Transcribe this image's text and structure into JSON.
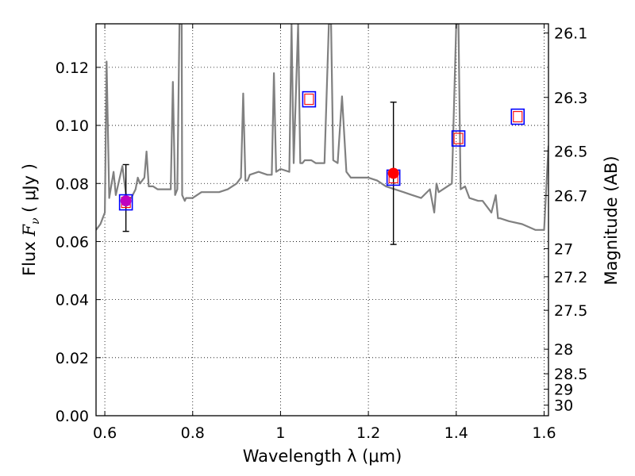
{
  "chart_data": {
    "type": "line",
    "xlabel": "Wavelength  λ (μm)",
    "ylabel": "Flux  F_ν  ( μJy )",
    "ylabel_parts": {
      "pre": "Flux  ",
      "sym": "F",
      "sub": "ν",
      "post": "  ( μJy )"
    },
    "y2label": "Magnitude (AB)",
    "xlim": [
      0.58,
      1.61
    ],
    "ylim": [
      0.0,
      0.135
    ],
    "grid": true,
    "x_ticks": [
      0.6,
      0.8,
      1.0,
      1.2,
      1.4,
      1.6
    ],
    "x_tick_labels": [
      "0.6",
      "0.8",
      "1",
      "1.2",
      "1.4",
      "1.6"
    ],
    "y_ticks": [
      0.0,
      0.02,
      0.04,
      0.06,
      0.08,
      0.1,
      0.12
    ],
    "y_tick_labels": [
      "0.00",
      "0.02",
      "0.04",
      "0.06",
      "0.08",
      "0.10",
      "0.12"
    ],
    "mag_ticks": [
      26.1,
      26.3,
      26.5,
      26.7,
      27,
      27.2,
      27.5,
      28,
      28.5,
      29,
      30
    ],
    "mag_tick_labels": [
      "26.1",
      "26.3",
      "26.5",
      "26.7",
      "27",
      "27.2",
      "27.5",
      "28",
      "28.5",
      "29",
      "30"
    ],
    "model_spectrum": {
      "name": "SED model",
      "color": "#808080",
      "x": [
        0.58,
        0.59,
        0.595,
        0.6,
        0.604,
        0.61,
        0.62,
        0.625,
        0.64,
        0.65,
        0.66,
        0.67,
        0.675,
        0.68,
        0.69,
        0.695,
        0.7,
        0.71,
        0.72,
        0.74,
        0.75,
        0.755,
        0.76,
        0.765,
        0.77,
        0.775,
        0.776,
        0.782,
        0.785,
        0.79,
        0.8,
        0.82,
        0.84,
        0.86,
        0.88,
        0.9,
        0.91,
        0.915,
        0.92,
        0.925,
        0.93,
        0.95,
        0.97,
        0.98,
        0.985,
        0.99,
        1.0,
        1.02,
        1.025,
        1.03,
        1.04,
        1.045,
        1.05,
        1.055,
        1.06,
        1.07,
        1.08,
        1.1,
        1.11,
        1.115,
        1.12,
        1.13,
        1.14,
        1.15,
        1.16,
        1.18,
        1.2,
        1.22,
        1.24,
        1.26,
        1.28,
        1.3,
        1.32,
        1.34,
        1.35,
        1.355,
        1.36,
        1.37,
        1.38,
        1.39,
        1.4,
        1.405,
        1.41,
        1.42,
        1.43,
        1.45,
        1.46,
        1.48,
        1.49,
        1.495,
        1.5,
        1.52,
        1.55,
        1.58,
        1.6,
        1.61
      ],
      "y": [
        0.064,
        0.066,
        0.068,
        0.07,
        0.122,
        0.075,
        0.084,
        0.076,
        0.086,
        0.074,
        0.075,
        0.078,
        0.082,
        0.08,
        0.082,
        0.091,
        0.079,
        0.079,
        0.078,
        0.078,
        0.078,
        0.115,
        0.076,
        0.078,
        0.135,
        0.135,
        0.076,
        0.074,
        0.075,
        0.075,
        0.075,
        0.077,
        0.077,
        0.077,
        0.078,
        0.08,
        0.082,
        0.111,
        0.081,
        0.081,
        0.083,
        0.084,
        0.083,
        0.083,
        0.118,
        0.084,
        0.085,
        0.084,
        0.135,
        0.087,
        0.135,
        0.087,
        0.087,
        0.088,
        0.088,
        0.088,
        0.087,
        0.087,
        0.135,
        0.135,
        0.088,
        0.087,
        0.11,
        0.084,
        0.082,
        0.082,
        0.082,
        0.081,
        0.079,
        0.078,
        0.077,
        0.076,
        0.075,
        0.078,
        0.07,
        0.08,
        0.077,
        0.078,
        0.079,
        0.08,
        0.135,
        0.135,
        0.078,
        0.079,
        0.075,
        0.074,
        0.074,
        0.07,
        0.076,
        0.068,
        0.068,
        0.067,
        0.066,
        0.064,
        0.064,
        0.093
      ]
    },
    "observed_points": [
      {
        "name": "observed-1",
        "x": 0.648,
        "y": 0.074,
        "err_low": 0.0635,
        "err_high": 0.0865,
        "color": "#c000c0"
      },
      {
        "name": "observed-2",
        "x": 1.257,
        "y": 0.0835,
        "err_low": 0.059,
        "err_high": 0.108,
        "color": "#ff0000"
      }
    ],
    "model_boxes": [
      {
        "name": "model-box-1",
        "x": 0.648,
        "y": 0.0735
      },
      {
        "name": "model-box-2",
        "x": 1.065,
        "y": 0.109
      },
      {
        "name": "model-box-3",
        "x": 1.257,
        "y": 0.082
      },
      {
        "name": "model-box-4",
        "x": 1.405,
        "y": 0.0955
      },
      {
        "name": "model-box-5",
        "x": 1.54,
        "y": 0.103
      }
    ]
  }
}
